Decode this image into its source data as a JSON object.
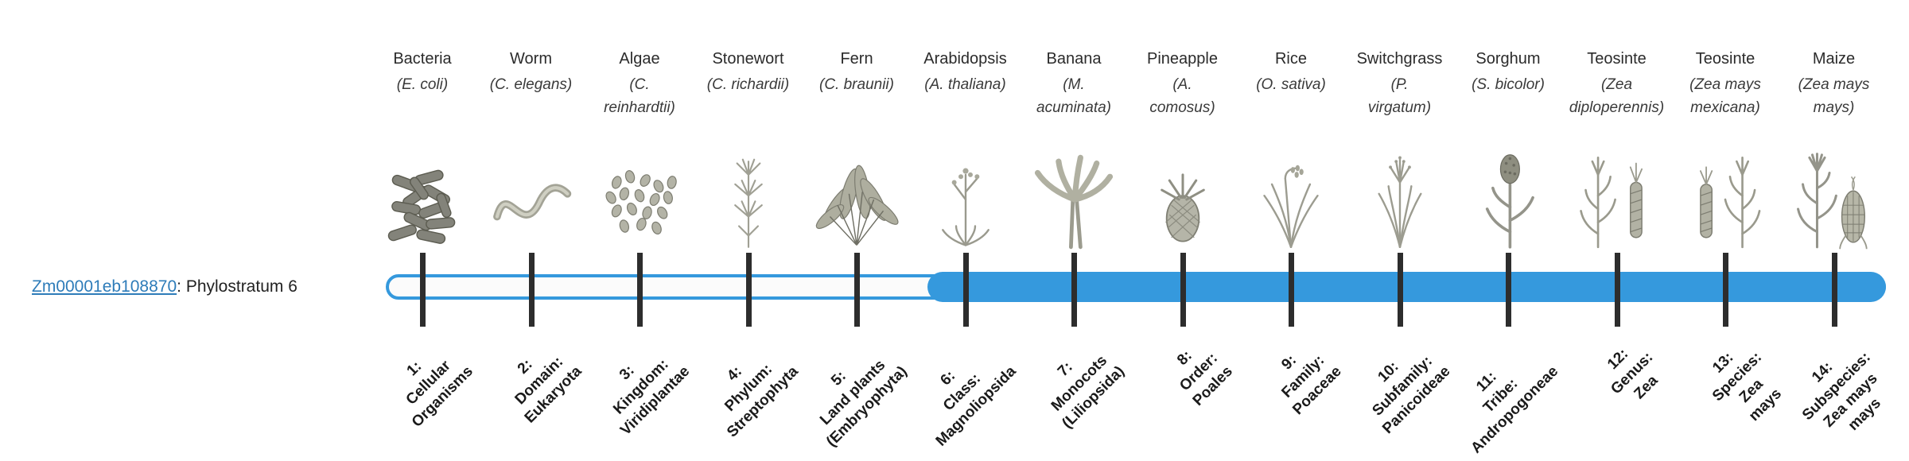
{
  "gene": {
    "id_link": "Zm00001eb108870",
    "suffix": ": Phylostratum 6"
  },
  "timeline": {
    "bar_color": "#3599dd",
    "tick_color": "#2d2d2d",
    "phylostratum": 6,
    "filled_from_index": 5
  },
  "taxa": [
    {
      "common": "Bacteria",
      "scientific": "(E. coli)",
      "tick_label": "1:\nCellular\nOrganisms",
      "icon": "bacteria-illustration"
    },
    {
      "common": "Worm",
      "scientific": "(C. elegans)",
      "tick_label": "2:\nDomain:\nEukaryota",
      "icon": "worm-illustration"
    },
    {
      "common": "Algae",
      "scientific": "(C.\nreinhardtii)",
      "tick_label": "3:\nKingdom:\nViridiplantae",
      "icon": "algae-illustration"
    },
    {
      "common": "Stonewort",
      "scientific": "(C. richardii)",
      "tick_label": "4:\nPhylum:\nStreptophyta",
      "icon": "stonewort-illustration"
    },
    {
      "common": "Fern",
      "scientific": "(C. braunii)",
      "tick_label": "5:\nLand plants\n(Embryophyta)",
      "icon": "fern-illustration"
    },
    {
      "common": "Arabidopsis",
      "scientific": "(A. thaliana)",
      "tick_label": "6:\nClass:\nMagnoliopsida",
      "icon": "arabidopsis-illustration"
    },
    {
      "common": "Banana",
      "scientific": "(M.\nacuminata)",
      "tick_label": "7:\nMonocots\n(Liliopsida)",
      "icon": "banana-illustration"
    },
    {
      "common": "Pineapple",
      "scientific": "(A.\ncomosus)",
      "tick_label": "8:\nOrder:\nPoales",
      "icon": "pineapple-illustration"
    },
    {
      "common": "Rice",
      "scientific": "(O. sativa)",
      "tick_label": "9:\nFamily:\nPoaceae",
      "icon": "rice-illustration"
    },
    {
      "common": "Switchgrass",
      "scientific": "(P.\nvirgatum)",
      "tick_label": "10:\nSubfamily:\nPanicoideae",
      "icon": "switchgrass-illustration"
    },
    {
      "common": "Sorghum",
      "scientific": "(S. bicolor)",
      "tick_label": "11:\nTribe:\nAndropogoneae",
      "icon": "sorghum-illustration"
    },
    {
      "common": "Teosinte",
      "scientific": "(Zea\ndiploperennis)",
      "tick_label": "12:\nGenus:\nZea",
      "icon": "teosinte-diploperennis-illustration"
    },
    {
      "common": "Teosinte",
      "scientific": "(Zea mays\nmexicana)",
      "tick_label": "13:\nSpecies:\nZea\nmays",
      "icon": "teosinte-mexicana-illustration"
    },
    {
      "common": "Maize",
      "scientific": "(Zea mays\nmays)",
      "tick_label": "14:\nSubspecies:\nZea mays\nmays",
      "icon": "maize-illustration"
    }
  ]
}
